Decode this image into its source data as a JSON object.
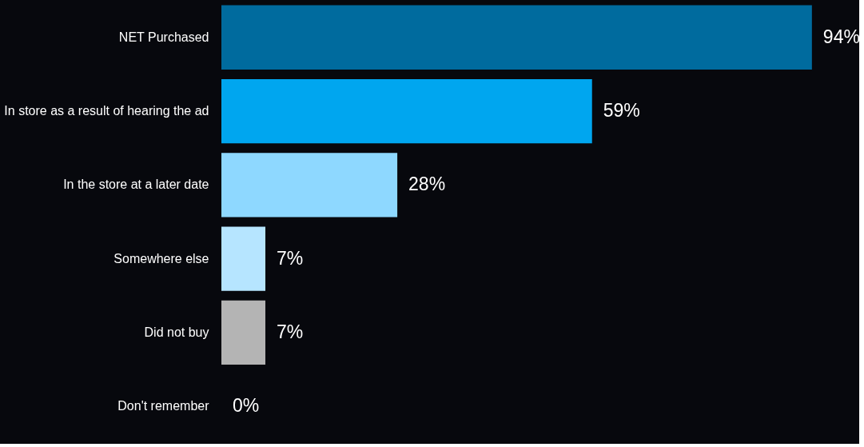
{
  "chart_data": {
    "type": "bar",
    "orientation": "horizontal",
    "categories": [
      "NET Purchased",
      "In store as a result of hearing the ad",
      "In the store at a later date",
      "Somewhere else",
      "Did not buy",
      "Don't remember"
    ],
    "values": [
      94,
      59,
      28,
      7,
      7,
      0
    ],
    "colors": [
      "#006b9e",
      "#00a6ef",
      "#8ed8ff",
      "#b6e5ff",
      "#b4b4b4",
      "#b4b4b4"
    ],
    "value_labels": [
      "94%",
      "59%",
      "28%",
      "7%",
      "7%",
      "0%"
    ],
    "grid": false
  }
}
